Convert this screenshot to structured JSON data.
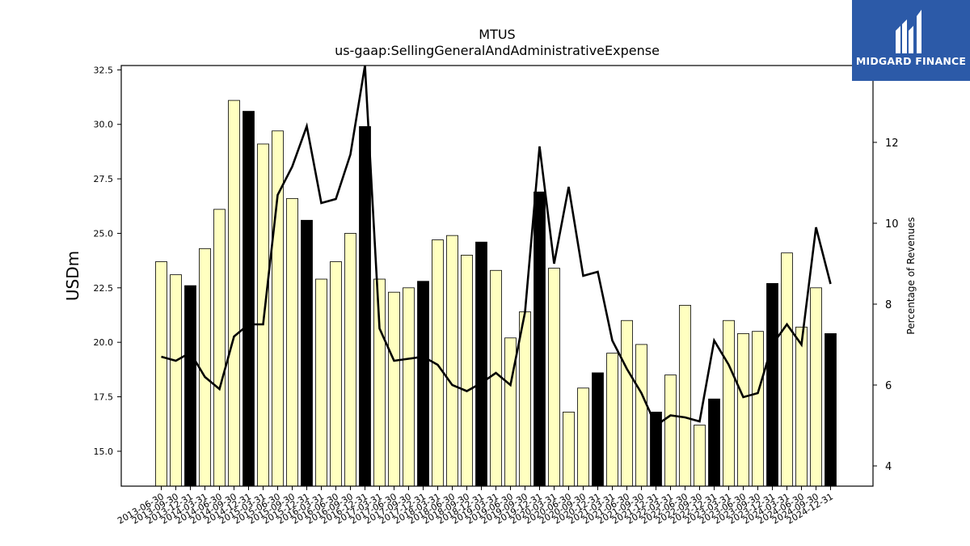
{
  "chart_data": {
    "type": "bar",
    "title": "MTUS",
    "subtitle": "us-gaap:SellingGeneralAndAdministrativeExpense",
    "ylabel": "USDm",
    "y2label": "Percentage of Revenues",
    "ylim": [
      13.4,
      32.7
    ],
    "y2lim": [
      3.5,
      13.9
    ],
    "yticks": [
      15.0,
      17.5,
      20.0,
      22.5,
      25.0,
      27.5,
      30.0,
      32.5
    ],
    "y2ticks": [
      4,
      6,
      8,
      10,
      12
    ],
    "grid": false,
    "categories": [
      "2013-06-30",
      "2013-09-30",
      "2013-12-31",
      "2014-03-31",
      "2014-06-30",
      "2014-09-30",
      "2014-12-31",
      "2015-03-31",
      "2015-06-30",
      "2015-09-30",
      "2015-12-31",
      "2016-03-31",
      "2016-06-30",
      "2016-09-30",
      "2016-12-31",
      "2017-03-31",
      "2017-06-30",
      "2017-09-30",
      "2017-12-31",
      "2018-03-31",
      "2018-06-30",
      "2018-09-30",
      "2018-12-31",
      "2019-03-31",
      "2019-06-30",
      "2019-09-30",
      "2019-12-31",
      "2020-03-31",
      "2020-06-30",
      "2020-09-30",
      "2020-12-31",
      "2021-03-31",
      "2021-06-30",
      "2021-09-30",
      "2021-12-31",
      "2022-03-31",
      "2022-06-30",
      "2022-09-30",
      "2022-12-31",
      "2023-03-31",
      "2023-06-30",
      "2023-09-30",
      "2023-12-31",
      "2024-03-31",
      "2024-06-30",
      "2024-09-30",
      "2024-12-31"
    ],
    "series": [
      {
        "type": "bar",
        "values": [
          23.7,
          23.1,
          22.6,
          24.3,
          26.1,
          31.1,
          30.6,
          29.1,
          29.7,
          26.6,
          25.6,
          22.9,
          23.7,
          25.0,
          29.9,
          22.9,
          22.3,
          22.5,
          22.8,
          24.7,
          24.9,
          24.0,
          24.6,
          23.3,
          20.2,
          21.4,
          26.9,
          23.4,
          16.8,
          17.9,
          18.6,
          19.5,
          21.0,
          19.9,
          16.8,
          18.5,
          21.7,
          16.2,
          17.4,
          21.0,
          20.4,
          20.5,
          22.7,
          24.1,
          20.7,
          22.5,
          20.4
        ],
        "highlight_every": "December quarter (Q4) bars shown in black"
      },
      {
        "type": "line",
        "axis": "right",
        "values": [
          6.7,
          6.6,
          6.8,
          6.2,
          5.9,
          7.2,
          7.5,
          7.5,
          10.7,
          11.4,
          12.4,
          10.5,
          10.6,
          11.7,
          13.9,
          7.4,
          6.6,
          6.65,
          6.7,
          6.5,
          6.0,
          5.85,
          6.05,
          6.3,
          6.0,
          7.8,
          11.9,
          9.0,
          10.9,
          8.7,
          8.8,
          7.1,
          6.4,
          5.8,
          5.0,
          5.25,
          5.2,
          5.1,
          7.1,
          6.5,
          5.7,
          5.8,
          7.0,
          7.5,
          7.0,
          9.9,
          8.5
        ]
      }
    ],
    "colors": {
      "bar": "#ffffc0",
      "bar_highlight": "#000000",
      "line": "#000000"
    }
  },
  "logo": {
    "text": "MIDGARD FINANCE",
    "bg": "#2c5aa8"
  }
}
